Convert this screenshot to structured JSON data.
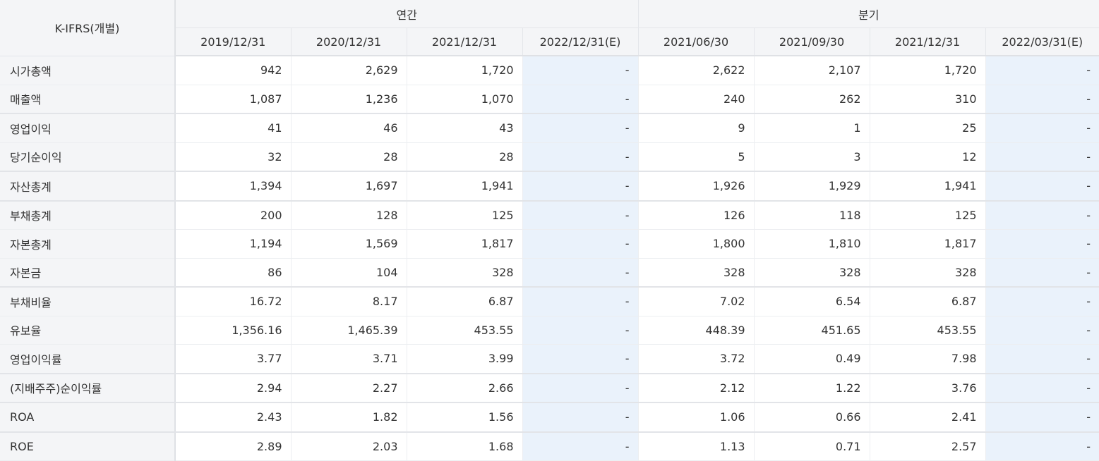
{
  "header": {
    "corner_label": "K-IFRS(개별)",
    "group_annual": "연간",
    "group_quarter": "분기",
    "columns": [
      "2019/12/31",
      "2020/12/31",
      "2021/12/31",
      "2022/12/31(E)",
      "2021/06/30",
      "2021/09/30",
      "2021/12/31",
      "2022/03/31(E)"
    ]
  },
  "rows": [
    {
      "label": "시가총액",
      "values": [
        "942",
        "2,629",
        "1,720",
        "-",
        "2,622",
        "2,107",
        "1,720",
        "-"
      ]
    },
    {
      "label": "매출액",
      "values": [
        "1,087",
        "1,236",
        "1,070",
        "-",
        "240",
        "262",
        "310",
        "-"
      ]
    },
    {
      "label": "영업이익",
      "values": [
        "41",
        "46",
        "43",
        "-",
        "9",
        "1",
        "25",
        "-"
      ]
    },
    {
      "label": "당기순이익",
      "values": [
        "32",
        "28",
        "28",
        "-",
        "5",
        "3",
        "12",
        "-"
      ]
    },
    {
      "label": "자산총계",
      "values": [
        "1,394",
        "1,697",
        "1,941",
        "-",
        "1,926",
        "1,929",
        "1,941",
        "-"
      ]
    },
    {
      "label": "부채총계",
      "values": [
        "200",
        "128",
        "125",
        "-",
        "126",
        "118",
        "125",
        "-"
      ]
    },
    {
      "label": "자본총계",
      "values": [
        "1,194",
        "1,569",
        "1,817",
        "-",
        "1,800",
        "1,810",
        "1,817",
        "-"
      ]
    },
    {
      "label": "자본금",
      "values": [
        "86",
        "104",
        "328",
        "-",
        "328",
        "328",
        "328",
        "-"
      ]
    },
    {
      "label": "부채비율",
      "values": [
        "16.72",
        "8.17",
        "6.87",
        "-",
        "7.02",
        "6.54",
        "6.87",
        "-"
      ]
    },
    {
      "label": "유보율",
      "values": [
        "1,356.16",
        "1,465.39",
        "453.55",
        "-",
        "448.39",
        "451.65",
        "453.55",
        "-"
      ]
    },
    {
      "label": "영업이익률",
      "values": [
        "3.77",
        "3.71",
        "3.99",
        "-",
        "3.72",
        "0.49",
        "7.98",
        "-"
      ]
    },
    {
      "label": "(지배주주)순이익률",
      "values": [
        "2.94",
        "2.27",
        "2.66",
        "-",
        "2.12",
        "1.22",
        "3.76",
        "-"
      ]
    },
    {
      "label": "ROA",
      "values": [
        "2.43",
        "1.82",
        "1.56",
        "-",
        "1.06",
        "0.66",
        "2.41",
        "-"
      ]
    },
    {
      "label": "ROE",
      "values": [
        "2.89",
        "2.03",
        "1.68",
        "-",
        "1.13",
        "0.71",
        "2.57",
        "-"
      ]
    }
  ],
  "colors": {
    "header_bg": "#f4f5f7",
    "estimate_bg": "#eaf2fb",
    "grid_line": "#eceef1"
  }
}
